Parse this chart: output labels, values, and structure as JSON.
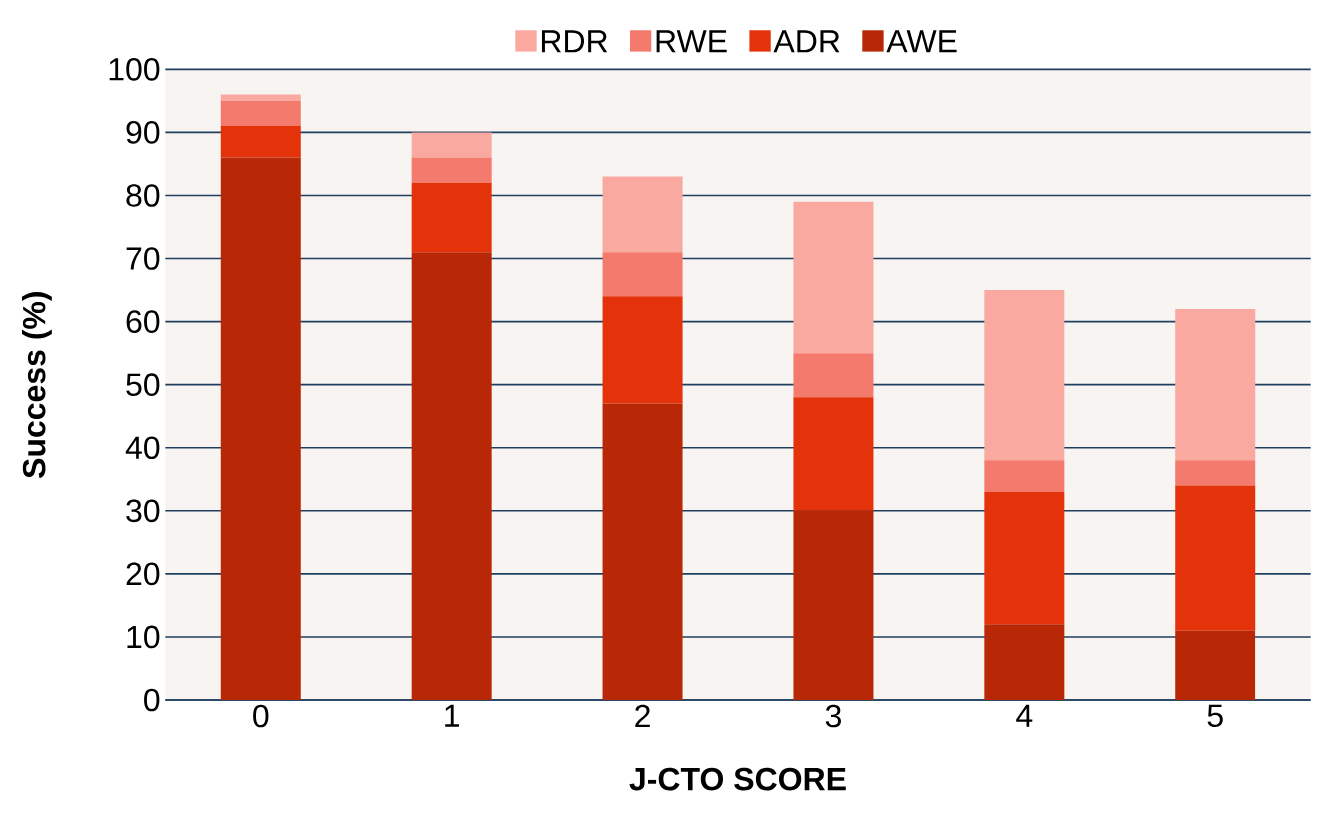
{
  "chart_data": {
    "type": "bar",
    "stacked": true,
    "xlabel": "J-CTO SCORE",
    "ylabel": "Success (%)",
    "categories": [
      "0",
      "1",
      "2",
      "3",
      "4",
      "5"
    ],
    "series": [
      {
        "name": "AWE",
        "color": "#b82807",
        "values": [
          86,
          71,
          47,
          30,
          12,
          11
        ]
      },
      {
        "name": "ADR",
        "color": "#e4330a",
        "values": [
          5,
          11,
          17,
          18,
          21,
          23
        ]
      },
      {
        "name": "RWE",
        "color": "#f57a6e",
        "values": [
          4,
          4,
          7,
          7,
          5,
          4
        ]
      },
      {
        "name": "RDR",
        "color": "#f9a9a0",
        "values": [
          1,
          4,
          12,
          24,
          27,
          24
        ]
      }
    ],
    "ylim": [
      0,
      100
    ],
    "yticks": [
      0,
      10,
      20,
      30,
      40,
      50,
      60,
      70,
      80,
      90,
      100
    ],
    "grid": "y",
    "legend": "top"
  }
}
